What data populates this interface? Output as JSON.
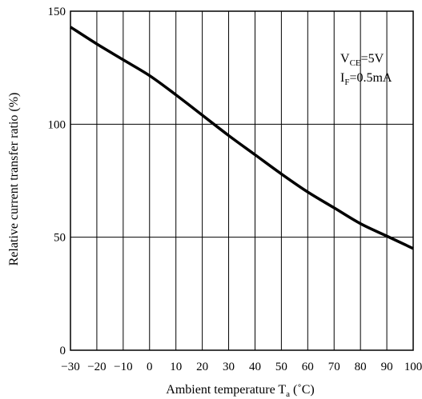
{
  "chart_data": {
    "type": "line",
    "xlabel": {
      "text": "Ambient temperature T",
      "subscript": "a",
      "unit": " (˚C)"
    },
    "ylabel": "Relative current transfer ratio (%)",
    "xlim": [
      -30,
      100
    ],
    "ylim": [
      0,
      150
    ],
    "x_ticks": [
      -30,
      -20,
      -10,
      0,
      10,
      20,
      30,
      40,
      50,
      60,
      70,
      80,
      90,
      100
    ],
    "x_tick_labels": [
      "−30",
      "−20",
      "−10",
      "0",
      "10",
      "20",
      "30",
      "40",
      "50",
      "60",
      "70",
      "80",
      "90",
      "100"
    ],
    "y_ticks": [
      0,
      50,
      100,
      150
    ],
    "y_tick_labels": [
      "0",
      "50",
      "100",
      "150"
    ],
    "grid": true,
    "annotations": [
      {
        "main": "V",
        "sub": "CE",
        "rest": "=5V"
      },
      {
        "main": "I",
        "sub": "F",
        "rest": "=0.5mA"
      }
    ],
    "series": [
      {
        "x": [
          -30,
          -20,
          -10,
          0,
          10,
          20,
          30,
          40,
          50,
          60,
          70,
          80,
          90,
          100
        ],
        "y": [
          143,
          135.5,
          128.5,
          121.5,
          113,
          104,
          95,
          86.5,
          78,
          70,
          63,
          56,
          50.5,
          45
        ]
      }
    ]
  }
}
